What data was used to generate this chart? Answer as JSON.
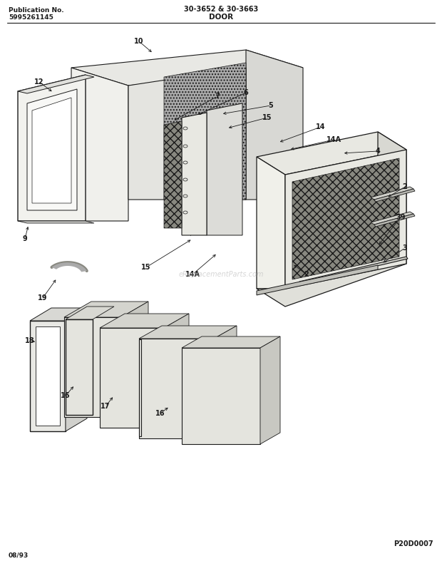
{
  "title_left1": "Publication No.",
  "title_left2": "5995261145",
  "title_center1": "30-3652 & 30-3663",
  "title_center2": "DOOR",
  "footer_left": "08/93",
  "footer_right": "P20D0007",
  "bg_color": "#ffffff",
  "line_color": "#1a1a1a",
  "watermark": "eReplacementParts.com"
}
